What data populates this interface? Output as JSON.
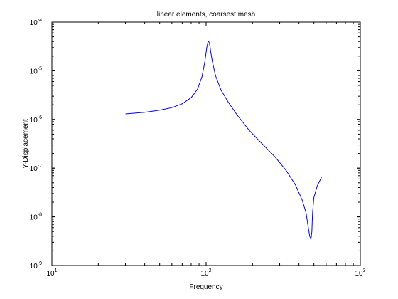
{
  "chart_data": {
    "type": "line",
    "title": "linear elements, coarsest mesh",
    "xlabel": "Frequency",
    "ylabel": "Y-Displacement",
    "xscale": "log",
    "yscale": "log",
    "xlim": [
      10,
      1000
    ],
    "ylim": [
      1e-09,
      0.0001
    ],
    "grid": false,
    "legend": "none",
    "x_ticks": [
      {
        "value": 10,
        "base": "10",
        "exp": "1"
      },
      {
        "value": 100,
        "base": "10",
        "exp": "2"
      },
      {
        "value": 1000,
        "base": "10",
        "exp": "3"
      }
    ],
    "y_ticks": [
      {
        "value": 1e-09,
        "base": "10",
        "exp": "-9"
      },
      {
        "value": 1e-08,
        "base": "10",
        "exp": "-8"
      },
      {
        "value": 1e-07,
        "base": "10",
        "exp": "-7"
      },
      {
        "value": 1e-06,
        "base": "10",
        "exp": "-6"
      },
      {
        "value": 1e-05,
        "base": "10",
        "exp": "-5"
      },
      {
        "value": 0.0001,
        "base": "10",
        "exp": "-4"
      }
    ],
    "series": [
      {
        "color": "#0000ff",
        "x": [
          30,
          40,
          50,
          60,
          70,
          80,
          88,
          94,
          98,
          101,
          103,
          104,
          105,
          106,
          107,
          110,
          115,
          125,
          140,
          160,
          190,
          230,
          280,
          330,
          380,
          420,
          445,
          460,
          470,
          478,
          485,
          490,
          500,
          525,
          560
        ],
        "y": [
          1.3e-06,
          1.4e-06,
          1.55e-06,
          1.75e-06,
          2.1e-06,
          2.8e-06,
          4.2e-06,
          7.5e-06,
          1.5e-05,
          3e-05,
          4e-05,
          4e-05,
          3.7e-05,
          3.2e-05,
          2.5e-05,
          1.5e-05,
          8e-06,
          4e-06,
          2.2e-06,
          1.2e-06,
          6e-07,
          3.2e-07,
          1.7e-07,
          9e-08,
          4.5e-08,
          2.2e-08,
          1.2e-08,
          6e-09,
          4e-09,
          3.4e-09,
          5e-09,
          1.2e-08,
          2.5e-08,
          4.3e-08,
          6.5e-08
        ]
      }
    ]
  }
}
